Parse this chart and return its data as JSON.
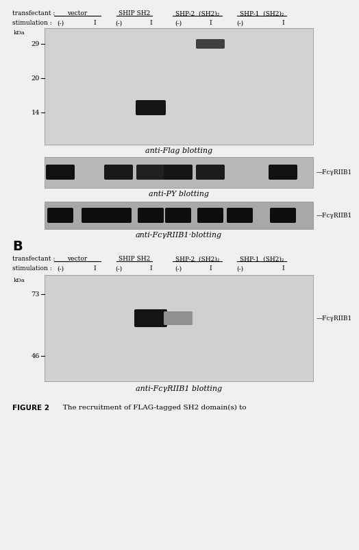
{
  "fig_width": 4.74,
  "fig_height": 7.83,
  "bg_color": "#f0f0f0",
  "blot1_bg": "#c0c0c0",
  "blot2_bg": "#b0b0b0",
  "blot3_bg": "#a8a8a8",
  "blot4_bg": "#c8c8c8",
  "transfectant_label": "transfectant :",
  "stimulation_label": "stimulation :",
  "group_names": [
    "vector",
    "SHIP SH2",
    "SHP-2  (SH2)₂",
    "SHP-1  (SH2)₂"
  ],
  "lane_labels": [
    "(-)",
    "I",
    "(-)",
    "I",
    "(-)",
    "I",
    "(-)",
    "I"
  ],
  "kda_labels_A": [
    "29",
    "20",
    "14"
  ],
  "kda_labels_B": [
    "73",
    "46"
  ],
  "blot1_label": "anti-Flag blotting",
  "blot2_label": "anti-PY blotting",
  "blot3_label": "anti-FcγRIIB1·blotting",
  "blot4_label": "anti-FcγRIIB1 blotting",
  "fcgr_label": "—FcγRIIB1",
  "panel_b_label": "B",
  "caption": "FIGURE 2",
  "caption_text": "   The recruitment of FLAG-tagged SH2 domain(s) to"
}
